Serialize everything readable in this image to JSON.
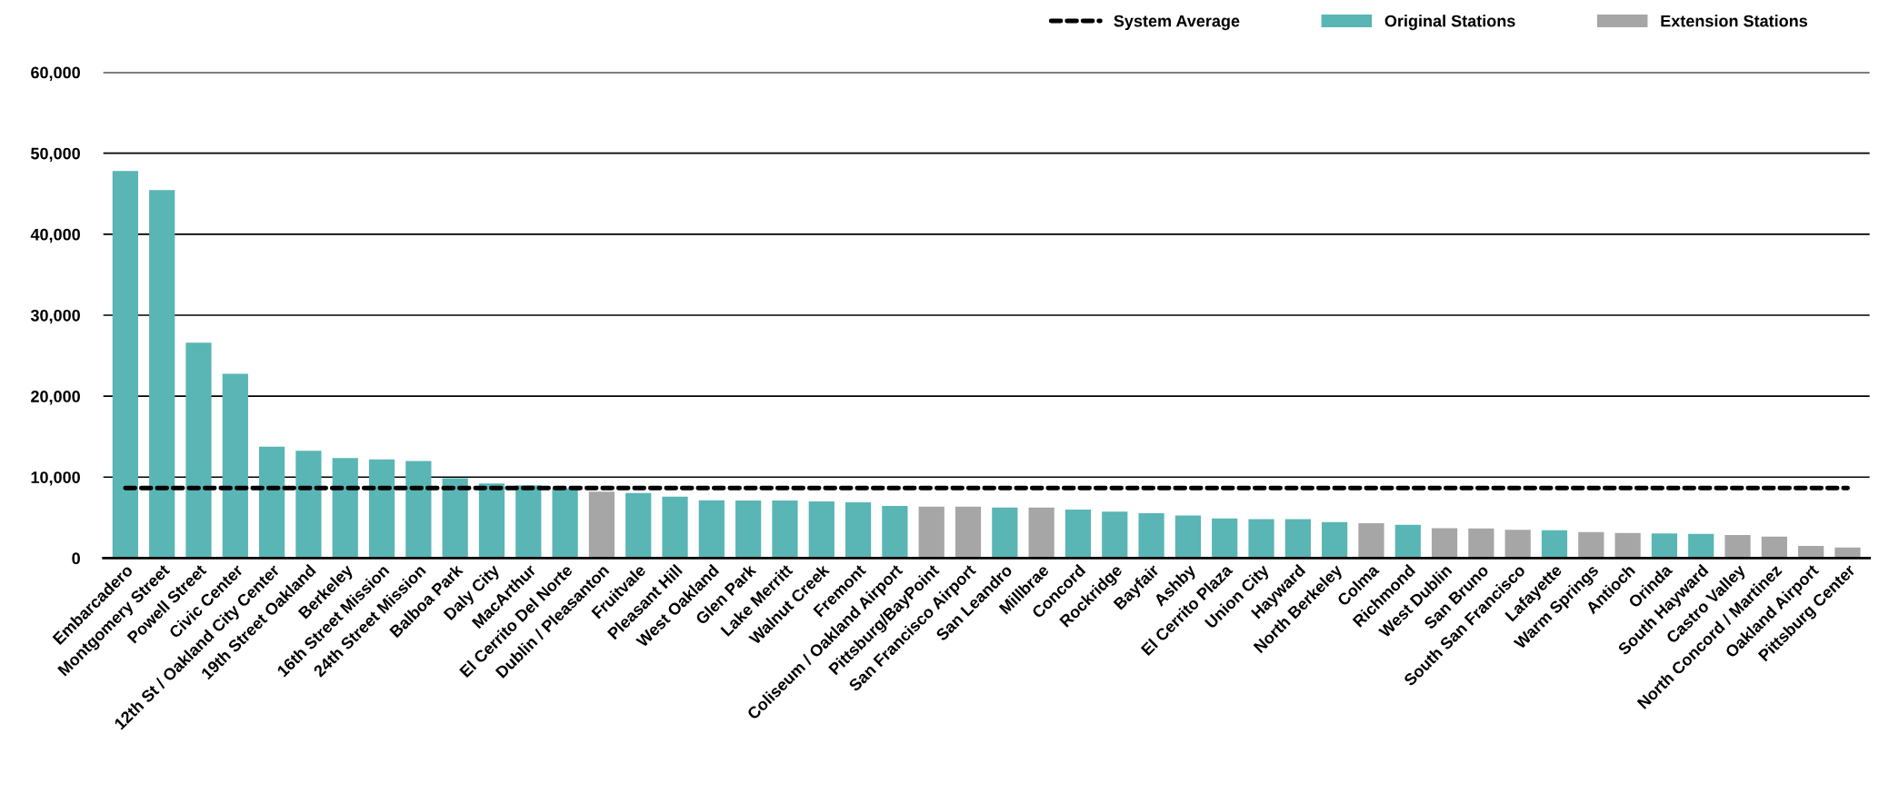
{
  "chart_data": {
    "type": "bar",
    "categories": [
      "Embarcadero",
      "Montgomery Street",
      "Powell Street",
      "Civic Center",
      "12th St / Oakland City Center",
      "19th Street Oakland",
      "Berkeley",
      "16th Street Mission",
      "24th Street Mission",
      "Balboa Park",
      "Daly City",
      "MacArthur",
      "El Cerrito Del Norte",
      "Dublin / Pleasanton",
      "Fruitvale",
      "Pleasant Hill",
      "West Oakland",
      "Glen Park",
      "Lake Merritt",
      "Walnut Creek",
      "Fremont",
      "Coliseum / Oakland Airport",
      "Pittsburg/BayPoint",
      "San Francisco Airport",
      "San Leandro",
      "Millbrae",
      "Concord",
      "Rockridge",
      "Bayfair",
      "Ashby",
      "El Cerrito Plaza",
      "Union City",
      "Hayward",
      "North Berkeley",
      "Colma",
      "Richmond",
      "West Dublin",
      "San Bruno",
      "South San Francisco",
      "Lafayette",
      "Warm Springs",
      "Antioch",
      "Orinda",
      "South Hayward",
      "Castro Valley",
      "North Concord / Martinez",
      "Oakland Airport",
      "Pittsburg Center"
    ],
    "series": [
      {
        "name": "Original Stations",
        "color": "#5ab5b5",
        "values": [
          47800,
          45450,
          26600,
          22750,
          13750,
          13250,
          12350,
          12200,
          12000,
          9850,
          9200,
          9000,
          8600,
          null,
          8050,
          7600,
          7150,
          7100,
          7100,
          7000,
          6900,
          6450,
          null,
          null,
          6250,
          null,
          6000,
          5750,
          5550,
          5250,
          4900,
          4800,
          4800,
          4450,
          null,
          4100,
          null,
          null,
          null,
          3450,
          null,
          null,
          3050,
          3000,
          null,
          null,
          null,
          null
        ]
      },
      {
        "name": "Extension Stations",
        "color": "#a6a6a6",
        "values": [
          null,
          null,
          null,
          null,
          null,
          null,
          null,
          null,
          null,
          null,
          null,
          null,
          null,
          8200,
          null,
          null,
          null,
          null,
          null,
          null,
          null,
          null,
          6350,
          6350,
          null,
          6250,
          null,
          null,
          null,
          null,
          null,
          null,
          null,
          null,
          4300,
          null,
          3700,
          3650,
          3500,
          null,
          3200,
          3100,
          null,
          null,
          2850,
          2650,
          1500,
          1300
        ]
      }
    ],
    "ref_lines": [
      {
        "axis": "y",
        "value": 8650,
        "label": "System Average",
        "color": "#000000",
        "line_style": "dashed"
      }
    ],
    "ylim": [
      0,
      60000
    ],
    "yticks": [
      0,
      {
        "value": 10000,
        "label": "10,000"
      },
      {
        "value": 20000,
        "label": "20,000"
      },
      {
        "value": 30000,
        "label": "30,000"
      },
      {
        "value": 40000,
        "label": "40,000"
      },
      {
        "value": 50000,
        "label": "50,000"
      },
      {
        "value": 60000,
        "label": "60,000"
      }
    ],
    "grid": "y",
    "legend": "top right"
  }
}
